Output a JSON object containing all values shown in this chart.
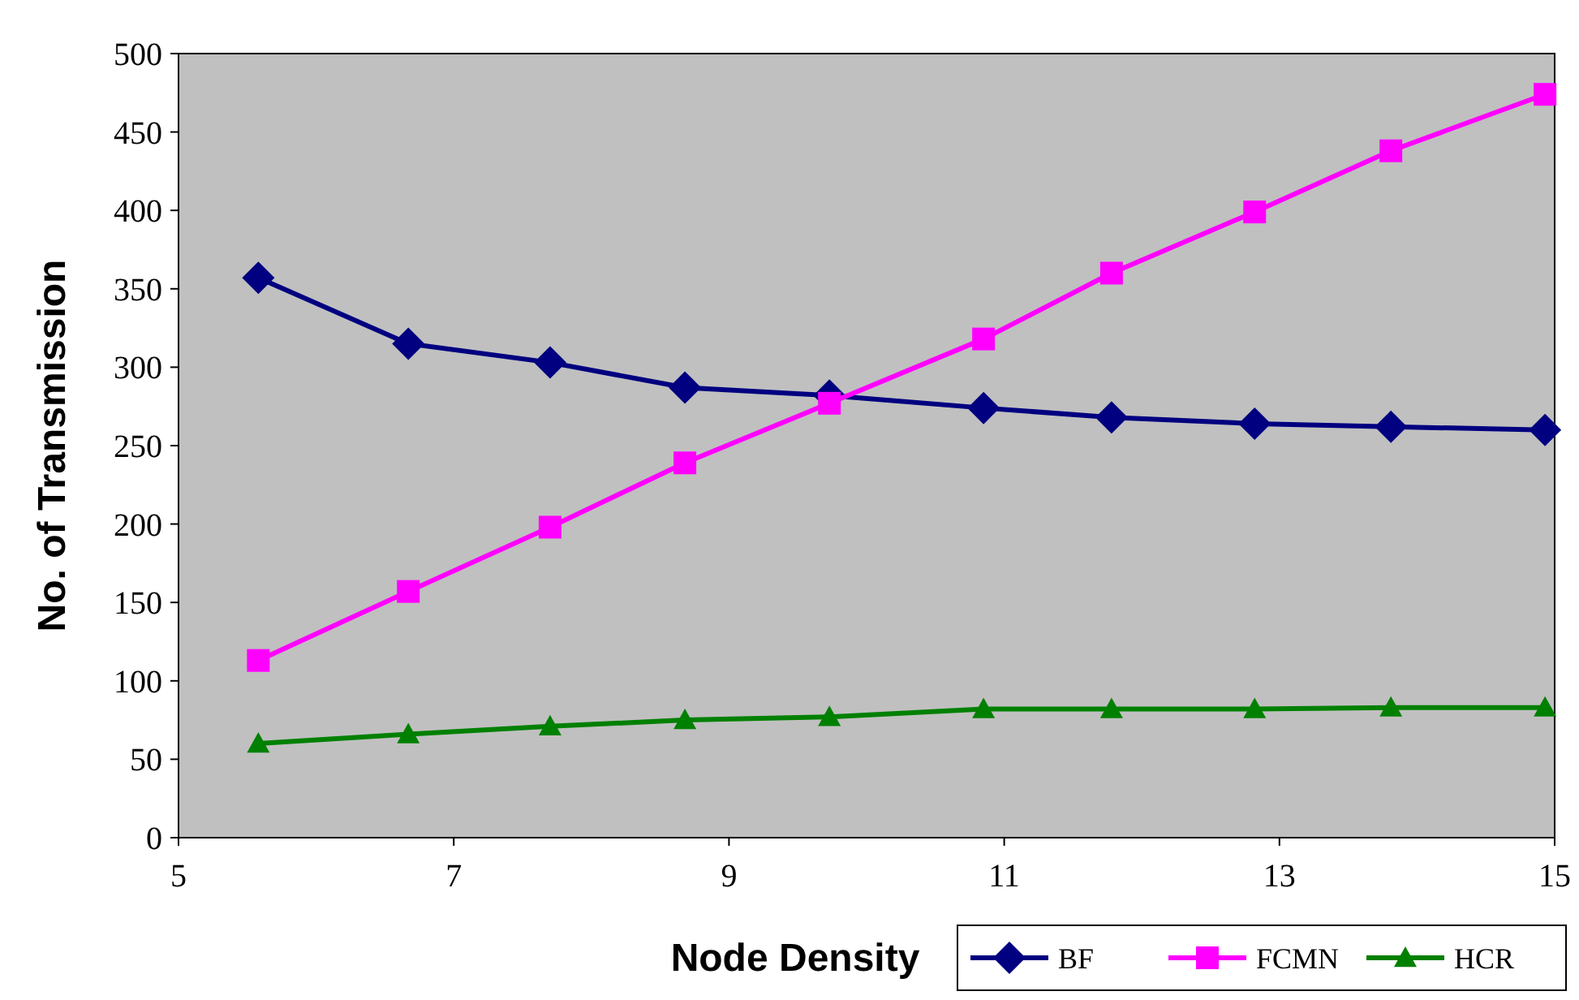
{
  "chart_data": {
    "type": "line",
    "xlabel": "Node Density",
    "ylabel": "No. of Transmission",
    "xlim": [
      5,
      15
    ],
    "xticks": [
      5,
      7,
      9,
      11,
      13,
      15
    ],
    "ylim": [
      0,
      500
    ],
    "yticks": [
      0,
      50,
      100,
      150,
      200,
      250,
      300,
      350,
      400,
      450,
      500
    ],
    "grid": false,
    "legend": "bottom right",
    "x": [
      5.58,
      6.67,
      7.7,
      8.68,
      9.73,
      10.85,
      11.78,
      12.82,
      13.81,
      14.93
    ],
    "series": [
      {
        "name": "BF",
        "color": "#000080",
        "marker": "diamond",
        "values": [
          357,
          315,
          303,
          287,
          282,
          274,
          268,
          264,
          262,
          260
        ]
      },
      {
        "name": "FCMN",
        "color": "#ff00ff",
        "marker": "square",
        "values": [
          113,
          157,
          198,
          239,
          277,
          318,
          360,
          399,
          438,
          474
        ]
      },
      {
        "name": "HCR",
        "color": "#008000",
        "marker": "triangle",
        "values": [
          60,
          66,
          71,
          75,
          77,
          82,
          82,
          82,
          83,
          83
        ]
      }
    ]
  }
}
